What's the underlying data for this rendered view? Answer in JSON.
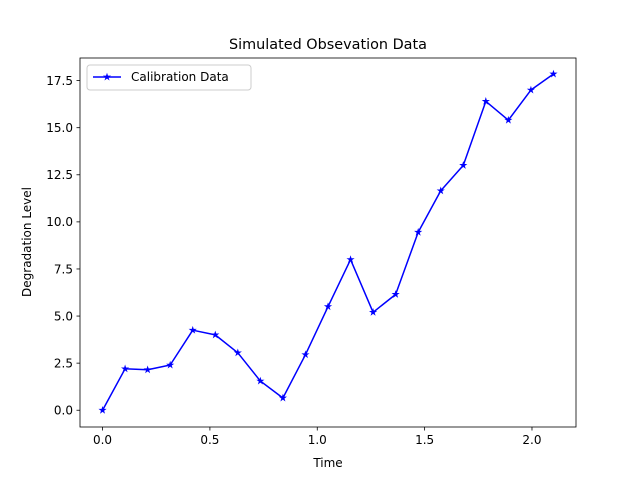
{
  "chart_data": {
    "type": "line",
    "title": "Simulated Obsevation Data",
    "xlabel": "Time",
    "ylabel": "Degradation Level",
    "xlim": [
      -0.105,
      2.205
    ],
    "ylim": [
      -0.89,
      18.7
    ],
    "xticks": [
      0.0,
      0.5,
      1.0,
      1.5,
      2.0
    ],
    "xtick_labels": [
      "0.0",
      "0.5",
      "1.0",
      "1.5",
      "2.0"
    ],
    "yticks": [
      0.0,
      2.5,
      5.0,
      7.5,
      10.0,
      12.5,
      15.0,
      17.5
    ],
    "ytick_labels": [
      "0.0",
      "2.5",
      "5.0",
      "7.5",
      "10.0",
      "12.5",
      "15.0",
      "17.5"
    ],
    "grid": false,
    "legend_position": "upper-left",
    "series": [
      {
        "name": "Calibration Data",
        "color": "#0000ff",
        "marker": "star",
        "x": [
          0.0,
          0.105,
          0.21,
          0.315,
          0.42,
          0.525,
          0.63,
          0.735,
          0.84,
          0.945,
          1.05,
          1.155,
          1.26,
          1.365,
          1.47,
          1.575,
          1.68,
          1.785,
          1.89,
          1.995,
          2.1
        ],
        "y": [
          0.0,
          2.2,
          2.15,
          2.4,
          4.25,
          4.0,
          3.05,
          1.55,
          0.65,
          2.95,
          5.5,
          8.0,
          5.2,
          6.15,
          9.45,
          11.65,
          13.0,
          16.4,
          15.4,
          17.0,
          17.85
        ]
      }
    ]
  }
}
